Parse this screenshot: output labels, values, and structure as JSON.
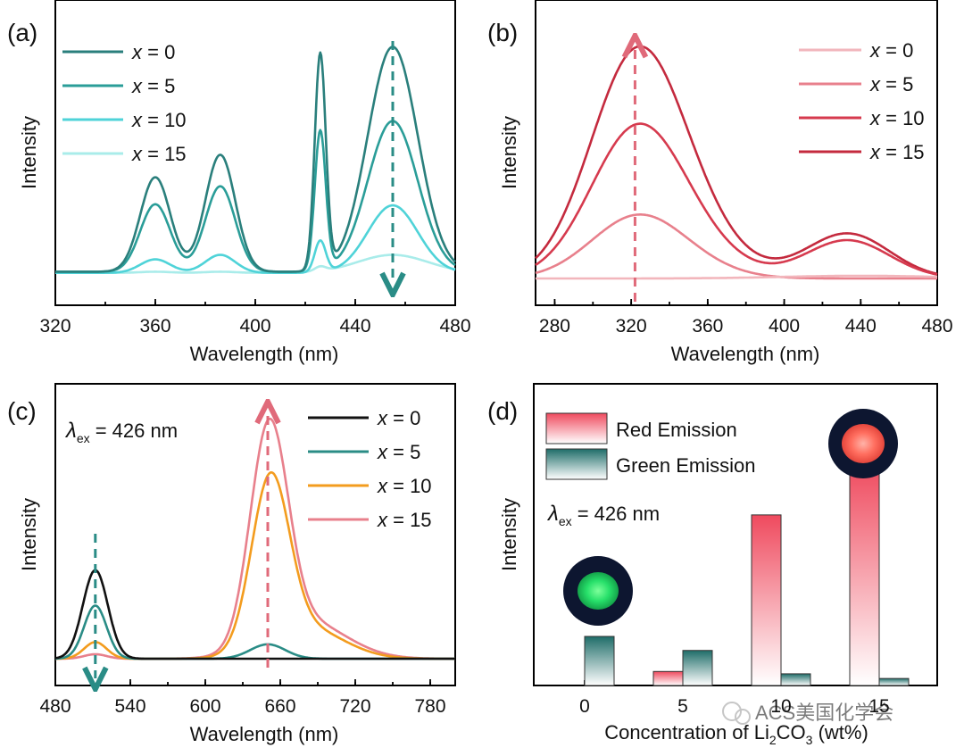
{
  "chart_data": [
    {
      "panel": "(a)",
      "type": "line",
      "xlabel": "Wavelength (nm)",
      "ylabel": "Intensity",
      "xlim": [
        320,
        480
      ],
      "xticks": [
        "320",
        "360",
        "400",
        "440",
        "480"
      ],
      "legend_position": "top-left",
      "arrow": "down",
      "series": [
        {
          "name": "x = 0",
          "color": "#2a7f7c",
          "base": 0.03,
          "peaks": [
            [
              360,
              0.42,
              6
            ],
            [
              386,
              0.52,
              6
            ],
            [
              426,
              0.96,
              2.2
            ],
            [
              455,
              1.0,
              10
            ]
          ]
        },
        {
          "name": "x = 5",
          "color": "#2a9d98",
          "base": 0.03,
          "peaks": [
            [
              360,
              0.3,
              6
            ],
            [
              386,
              0.38,
              6
            ],
            [
              426,
              0.62,
              2.2
            ],
            [
              455,
              0.67,
              10
            ]
          ]
        },
        {
          "name": "x = 10",
          "color": "#4fd3d8",
          "base": 0.025,
          "peaks": [
            [
              360,
              0.06,
              6
            ],
            [
              386,
              0.08,
              6
            ],
            [
              426,
              0.14,
              2.2
            ],
            [
              455,
              0.3,
              10
            ]
          ]
        },
        {
          "name": "x = 15",
          "color": "#a9ecea",
          "base": 0.025,
          "peaks": [
            [
              360,
              0.005,
              6
            ],
            [
              386,
              0.005,
              6
            ],
            [
              426,
              0.02,
              2.2
            ],
            [
              455,
              0.08,
              14
            ]
          ]
        }
      ]
    },
    {
      "panel": "(b)",
      "type": "line",
      "xlabel": "Wavelength (nm)",
      "ylabel": "Intensity",
      "xlim": [
        270,
        480
      ],
      "xticks": [
        "280",
        "320",
        "360",
        "400",
        "440",
        "480"
      ],
      "legend_position": "top-right",
      "arrow": "up",
      "series": [
        {
          "name": "x = 0",
          "color": "#f2b6bc",
          "base": 0.0,
          "peaks": [
            [
              440,
              0.012,
              40
            ]
          ]
        },
        {
          "name": "x = 5",
          "color": "#e8808c",
          "base": 0.0,
          "peaks": [
            [
              322,
              0.25,
              24
            ],
            [
              345,
              0.05,
              25
            ]
          ]
        },
        {
          "name": "x = 10",
          "color": "#d63a4e",
          "base": 0.0,
          "peaks": [
            [
              322,
              0.62,
              24
            ],
            [
              350,
              0.12,
              25
            ],
            [
              433,
              0.17,
              22
            ]
          ]
        },
        {
          "name": "x = 15",
          "color": "#c42a3e",
          "base": 0.0,
          "peaks": [
            [
              322,
              0.93,
              24
            ],
            [
              350,
              0.18,
              25
            ],
            [
              433,
              0.2,
              22
            ]
          ]
        }
      ]
    },
    {
      "panel": "(c)",
      "type": "line",
      "xlabel": "Wavelength (nm)",
      "ylabel": "Intensity",
      "xlim": [
        480,
        800
      ],
      "xticks": [
        "480",
        "540",
        "600",
        "660",
        "720",
        "780"
      ],
      "legend_position": "top-right",
      "annotation": {
        "symbol": "λ",
        "sub": "ex",
        "text": " = 426 nm"
      },
      "arrows": [
        "down",
        "up"
      ],
      "series": [
        {
          "name": "x = 0",
          "color": "#111111",
          "base": 0.0,
          "peaks": [
            [
              512,
              0.4,
              10
            ]
          ]
        },
        {
          "name": "x = 5",
          "color": "#2a8c86",
          "base": 0.0,
          "peaks": [
            [
              512,
              0.24,
              9
            ],
            [
              650,
              0.065,
              14
            ]
          ]
        },
        {
          "name": "x = 10",
          "color": "#f39c1e",
          "base": 0.0,
          "peaks": [
            [
              512,
              0.075,
              9
            ],
            [
              652,
              0.75,
              15
            ],
            [
              680,
              0.14,
              30
            ]
          ]
        },
        {
          "name": "x = 15",
          "color": "#e8808c",
          "base": 0.0,
          "peaks": [
            [
              512,
              0.02,
              9
            ],
            [
              651,
              0.97,
              15
            ],
            [
              680,
              0.17,
              32
            ]
          ]
        }
      ]
    },
    {
      "panel": "(d)",
      "type": "bar",
      "xlabel": "Concentration of Li",
      "xlabel_sub": "2",
      "xlabel_mid": "CO",
      "xlabel_sub2": "3",
      "xlabel_end": " (wt%)",
      "ylabel": "Intensity",
      "categories": [
        "0",
        "5",
        "10",
        "15"
      ],
      "annotation": {
        "symbol": "λ",
        "sub": "ex",
        "text": " = 426 nm"
      },
      "series": [
        {
          "name": "Red Emission",
          "color": "#ef4a5e",
          "values": [
            0.0,
            0.06,
            0.73,
            0.95
          ]
        },
        {
          "name": "Green Emission",
          "color": "#2a8c86",
          "values": [
            0.21,
            0.15,
            0.05,
            0.03
          ]
        }
      ]
    }
  ],
  "watermark": "ACS美国化学会"
}
